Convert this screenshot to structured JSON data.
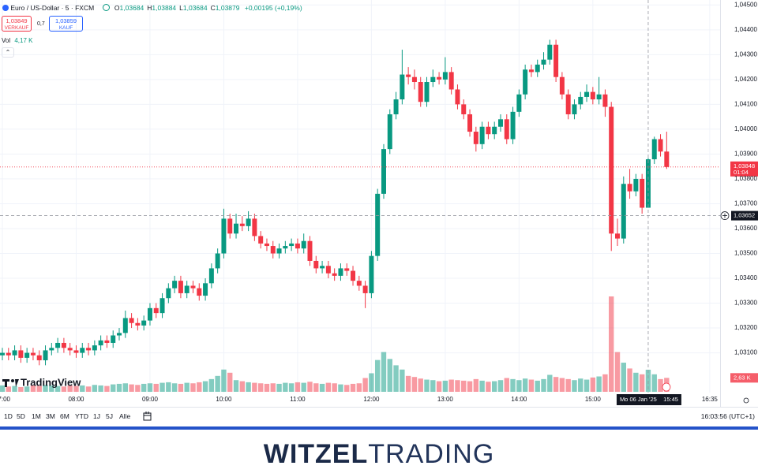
{
  "header": {
    "symbol": "Euro / US-Dollar · 5 · FXCM",
    "ohlc": [
      {
        "key": "O",
        "value": "1,03684"
      },
      {
        "key": "H",
        "value": "1,03884"
      },
      {
        "key": "L",
        "value": "1,03684"
      },
      {
        "key": "C",
        "value": "1,03879"
      }
    ],
    "change": "+0,00195 (+0,19%)",
    "sell": {
      "price": "1,03849",
      "label": "VERKAUF"
    },
    "spread": "0,7",
    "buy": {
      "price": "1,03859",
      "label": "KAUF"
    },
    "volume_label": "Vol",
    "volume_value": "4,17 K"
  },
  "chart_data": {
    "type": "candlestick",
    "x": [
      "07:00",
      "07:05",
      "07:10",
      "07:15",
      "07:20",
      "07:25",
      "07:30",
      "07:35",
      "07:40",
      "07:45",
      "07:50",
      "07:55",
      "08:00",
      "08:05",
      "08:10",
      "08:15",
      "08:20",
      "08:25",
      "08:30",
      "08:35",
      "08:40",
      "08:45",
      "08:50",
      "08:55",
      "09:00",
      "09:05",
      "09:10",
      "09:15",
      "09:20",
      "09:25",
      "09:30",
      "09:35",
      "09:40",
      "09:45",
      "09:50",
      "09:55",
      "10:00",
      "10:05",
      "10:10",
      "10:15",
      "10:20",
      "10:25",
      "10:30",
      "10:35",
      "10:40",
      "10:45",
      "10:50",
      "10:55",
      "11:00",
      "11:05",
      "11:10",
      "11:15",
      "11:20",
      "11:25",
      "11:30",
      "11:35",
      "11:40",
      "11:45",
      "11:50",
      "11:55",
      "12:00",
      "12:05",
      "12:10",
      "12:15",
      "12:20",
      "12:25",
      "12:30",
      "12:35",
      "12:40",
      "12:45",
      "12:50",
      "12:55",
      "13:00",
      "13:05",
      "13:10",
      "13:15",
      "13:20",
      "13:25",
      "13:30",
      "13:35",
      "13:40",
      "13:45",
      "13:50",
      "13:55",
      "14:00",
      "14:05",
      "14:10",
      "14:15",
      "14:20",
      "14:25",
      "14:30",
      "14:35",
      "14:40",
      "14:45",
      "14:50",
      "14:55",
      "15:00",
      "15:05",
      "15:10",
      "15:15",
      "15:20",
      "15:25",
      "15:30",
      "15:35",
      "15:40",
      "15:45",
      "15:50",
      "15:55",
      "16:00"
    ],
    "open": [
      1.0309,
      1.031,
      1.0309,
      1.0311,
      1.0308,
      1.031,
      1.0309,
      1.0307,
      1.0311,
      1.0312,
      1.0314,
      1.0312,
      1.0311,
      1.031,
      1.0312,
      1.0311,
      1.0313,
      1.0315,
      1.0314,
      1.0317,
      1.0318,
      1.0324,
      1.0322,
      1.0321,
      1.0323,
      1.0328,
      1.0326,
      1.0332,
      1.0336,
      1.0339,
      1.0334,
      1.0337,
      1.0336,
      1.0333,
      1.0338,
      1.0344,
      1.035,
      1.0364,
      1.0358,
      1.0362,
      1.0361,
      1.0364,
      1.0357,
      1.0354,
      1.0353,
      1.035,
      1.0352,
      1.0353,
      1.0354,
      1.0352,
      1.0355,
      1.0347,
      1.0344,
      1.0345,
      1.0342,
      1.0341,
      1.0344,
      1.0343,
      1.0339,
      1.0337,
      1.0334,
      1.0349,
      1.0374,
      1.0392,
      1.0406,
      1.0412,
      1.0422,
      1.0421,
      1.0419,
      1.0411,
      1.0419,
      1.0421,
      1.042,
      1.0423,
      1.0416,
      1.041,
      1.0406,
      1.0399,
      1.0394,
      1.0401,
      1.0398,
      1.0401,
      1.0404,
      1.0396,
      1.0407,
      1.0414,
      1.0424,
      1.0423,
      1.0426,
      1.0428,
      1.0434,
      1.0421,
      1.0414,
      1.0406,
      1.041,
      1.0413,
      1.0415,
      1.0412,
      1.0414,
      1.0409,
      1.0358,
      1.0356,
      1.0378,
      1.0375,
      1.038,
      1.03684,
      1.03879,
      1.0396,
      1.0391
    ],
    "high": [
      1.0312,
      1.0312,
      1.0313,
      1.0313,
      1.0312,
      1.0312,
      1.0311,
      1.0313,
      1.0314,
      1.0316,
      1.0316,
      1.0314,
      1.0313,
      1.0314,
      1.0314,
      1.0315,
      1.0317,
      1.0317,
      1.0319,
      1.032,
      1.0327,
      1.0326,
      1.0324,
      1.0325,
      1.033,
      1.033,
      1.0334,
      1.0338,
      1.0341,
      1.0341,
      1.0339,
      1.0339,
      1.0338,
      1.034,
      1.0346,
      1.0352,
      1.0368,
      1.0366,
      1.0366,
      1.0365,
      1.0367,
      1.0366,
      1.0359,
      1.0356,
      1.0355,
      1.0354,
      1.0355,
      1.0356,
      1.0356,
      1.0358,
      1.0357,
      1.0349,
      1.0347,
      1.0347,
      1.0344,
      1.0346,
      1.0346,
      1.0345,
      1.0341,
      1.0339,
      1.0351,
      1.0376,
      1.0394,
      1.0408,
      1.0415,
      1.0432,
      1.0425,
      1.0424,
      1.0421,
      1.0421,
      1.0424,
      1.0423,
      1.0429,
      1.0425,
      1.0418,
      1.0412,
      1.0408,
      1.0401,
      1.0403,
      1.0403,
      1.0403,
      1.0406,
      1.0406,
      1.0409,
      1.0416,
      1.0426,
      1.0426,
      1.0428,
      1.0431,
      1.0436,
      1.0436,
      1.0423,
      1.0416,
      1.0412,
      1.0415,
      1.0418,
      1.0417,
      1.0421,
      1.0416,
      1.0411,
      1.0364,
      1.0381,
      1.0384,
      1.0382,
      1.0382,
      1.03884,
      1.0397,
      1.0398,
      1.0399
    ],
    "low": [
      1.0307,
      1.0307,
      1.0307,
      1.0306,
      1.0306,
      1.0307,
      1.0305,
      1.0305,
      1.0309,
      1.031,
      1.031,
      1.0309,
      1.0308,
      1.0308,
      1.0309,
      1.0309,
      1.0311,
      1.0312,
      1.0312,
      1.0315,
      1.0316,
      1.032,
      1.0319,
      1.0319,
      1.0321,
      1.0324,
      1.0324,
      1.033,
      1.0334,
      1.0332,
      1.0332,
      1.0334,
      1.0331,
      1.0331,
      1.0336,
      1.0342,
      1.0348,
      1.0356,
      1.0356,
      1.0359,
      1.0359,
      1.0355,
      1.0352,
      1.0351,
      1.0348,
      1.0348,
      1.035,
      1.0351,
      1.035,
      1.035,
      1.0345,
      1.0342,
      1.0342,
      1.034,
      1.0339,
      1.0339,
      1.0341,
      1.0337,
      1.0335,
      1.0328,
      1.0332,
      1.0347,
      1.0372,
      1.039,
      1.0404,
      1.041,
      1.0418,
      1.0416,
      1.0409,
      1.0409,
      1.0417,
      1.0418,
      1.0418,
      1.0414,
      1.0408,
      1.0404,
      1.0397,
      1.0391,
      1.0392,
      1.0396,
      1.0396,
      1.0399,
      1.0394,
      1.0394,
      1.0405,
      1.0412,
      1.0421,
      1.0421,
      1.0424,
      1.0426,
      1.0419,
      1.0412,
      1.0404,
      1.0404,
      1.0408,
      1.0411,
      1.041,
      1.041,
      1.0405,
      1.0351,
      1.0353,
      1.0354,
      1.0372,
      1.0373,
      1.0366,
      1.03684,
      1.0386,
      1.0389,
      1.0384
    ],
    "close": [
      1.031,
      1.0309,
      1.0311,
      1.0308,
      1.031,
      1.0309,
      1.0307,
      1.0311,
      1.0312,
      1.0314,
      1.0312,
      1.0311,
      1.031,
      1.0312,
      1.0311,
      1.0313,
      1.0315,
      1.0314,
      1.0317,
      1.0318,
      1.0324,
      1.0322,
      1.0321,
      1.0323,
      1.0328,
      1.0326,
      1.0332,
      1.0336,
      1.0339,
      1.0334,
      1.0337,
      1.0336,
      1.0333,
      1.0338,
      1.0344,
      1.035,
      1.0364,
      1.0358,
      1.0362,
      1.0361,
      1.0364,
      1.0357,
      1.0354,
      1.0353,
      1.035,
      1.0352,
      1.0353,
      1.0354,
      1.0352,
      1.0355,
      1.0347,
      1.0344,
      1.0345,
      1.0342,
      1.0341,
      1.0344,
      1.0343,
      1.0339,
      1.0337,
      1.0334,
      1.0349,
      1.0374,
      1.0392,
      1.0406,
      1.0412,
      1.0422,
      1.0421,
      1.0419,
      1.0411,
      1.0419,
      1.0421,
      1.042,
      1.0423,
      1.0416,
      1.041,
      1.0406,
      1.0399,
      1.0394,
      1.0401,
      1.0398,
      1.0401,
      1.0404,
      1.0396,
      1.0407,
      1.0414,
      1.0424,
      1.0423,
      1.0426,
      1.0428,
      1.0434,
      1.0421,
      1.0414,
      1.0406,
      1.041,
      1.0413,
      1.0415,
      1.0412,
      1.0414,
      1.0409,
      1.0358,
      1.0356,
      1.0378,
      1.0375,
      1.038,
      1.03684,
      1.03879,
      1.0396,
      1.0391,
      1.03848
    ],
    "volume": [
      1.2,
      1.0,
      1.1,
      0.9,
      1.0,
      1.2,
      1.1,
      1.3,
      1.2,
      1.1,
      1.0,
      1.2,
      1.1,
      1.2,
      1.0,
      1.3,
      1.2,
      1.1,
      1.4,
      1.5,
      1.6,
      1.4,
      1.3,
      1.5,
      1.6,
      1.5,
      1.7,
      1.8,
      1.6,
      1.5,
      1.7,
      1.6,
      1.8,
      2.0,
      2.4,
      3.0,
      4.2,
      3.6,
      2.2,
      2.0,
      1.8,
      1.7,
      1.6,
      1.5,
      1.6,
      1.5,
      1.7,
      1.6,
      1.8,
      1.7,
      1.9,
      1.6,
      1.5,
      1.7,
      1.6,
      1.4,
      1.3,
      1.5,
      1.6,
      2.6,
      3.5,
      6.0,
      7.5,
      6.2,
      5.0,
      4.2,
      3.0,
      2.8,
      2.5,
      2.3,
      2.2,
      2.0,
      2.1,
      2.3,
      2.2,
      2.1,
      2.0,
      2.4,
      2.1,
      1.9,
      2.0,
      2.2,
      2.6,
      2.4,
      2.2,
      2.5,
      2.3,
      2.1,
      2.4,
      3.2,
      2.8,
      2.6,
      2.4,
      2.2,
      2.5,
      2.3,
      2.7,
      2.9,
      3.3,
      18.0,
      7.5,
      5.5,
      4.4,
      3.6,
      3.3,
      4.17,
      3.3,
      2.4,
      2.63
    ],
    "up_color": "#089981",
    "down_color": "#f23645",
    "ylim": [
      1.0294,
      1.0452
    ],
    "yticks": [
      {
        "value": 1.045,
        "label": "1,04500"
      },
      {
        "value": 1.044,
        "label": "1,04400"
      },
      {
        "value": 1.043,
        "label": "1,04300"
      },
      {
        "value": 1.042,
        "label": "1,04200"
      },
      {
        "value": 1.041,
        "label": "1,04100"
      },
      {
        "value": 1.04,
        "label": "1,04000"
      },
      {
        "value": 1.039,
        "label": "1,03900"
      },
      {
        "value": 1.038,
        "label": "1,03800"
      },
      {
        "value": 1.037,
        "label": "1,03700"
      },
      {
        "value": 1.036,
        "label": "1,03600"
      },
      {
        "value": 1.035,
        "label": "1,03500"
      },
      {
        "value": 1.034,
        "label": "1,03400"
      },
      {
        "value": 1.033,
        "label": "1,03300"
      },
      {
        "value": 1.032,
        "label": "1,03200"
      },
      {
        "value": 1.031,
        "label": "1,03100"
      }
    ],
    "xticks": [
      "07:00",
      "08:00",
      "09:00",
      "10:00",
      "11:00",
      "12:00",
      "13:00",
      "14:00",
      "15:00",
      "16:35"
    ],
    "volume_ylim": [
      0,
      18.3
    ],
    "volume_last_label": "2,63 K",
    "grid": true,
    "last_price": {
      "value": 1.03848,
      "label": "1,03848",
      "countdown": "01:04"
    },
    "crosshair": {
      "x": "15:45",
      "date_label": "Mo 06 Jan '25",
      "time_label": "15:45",
      "price": 1.03652,
      "price_label": "1,03652"
    }
  },
  "watermark": "TradingView",
  "toolbar": {
    "ranges": [
      "1D",
      "5D",
      "1M",
      "3M",
      "6M",
      "YTD",
      "1J",
      "5J",
      "Alle"
    ],
    "clock": "16:03:56 (UTC+1)"
  },
  "brand": {
    "bold": "WITZEL",
    "light": "TRADING"
  }
}
